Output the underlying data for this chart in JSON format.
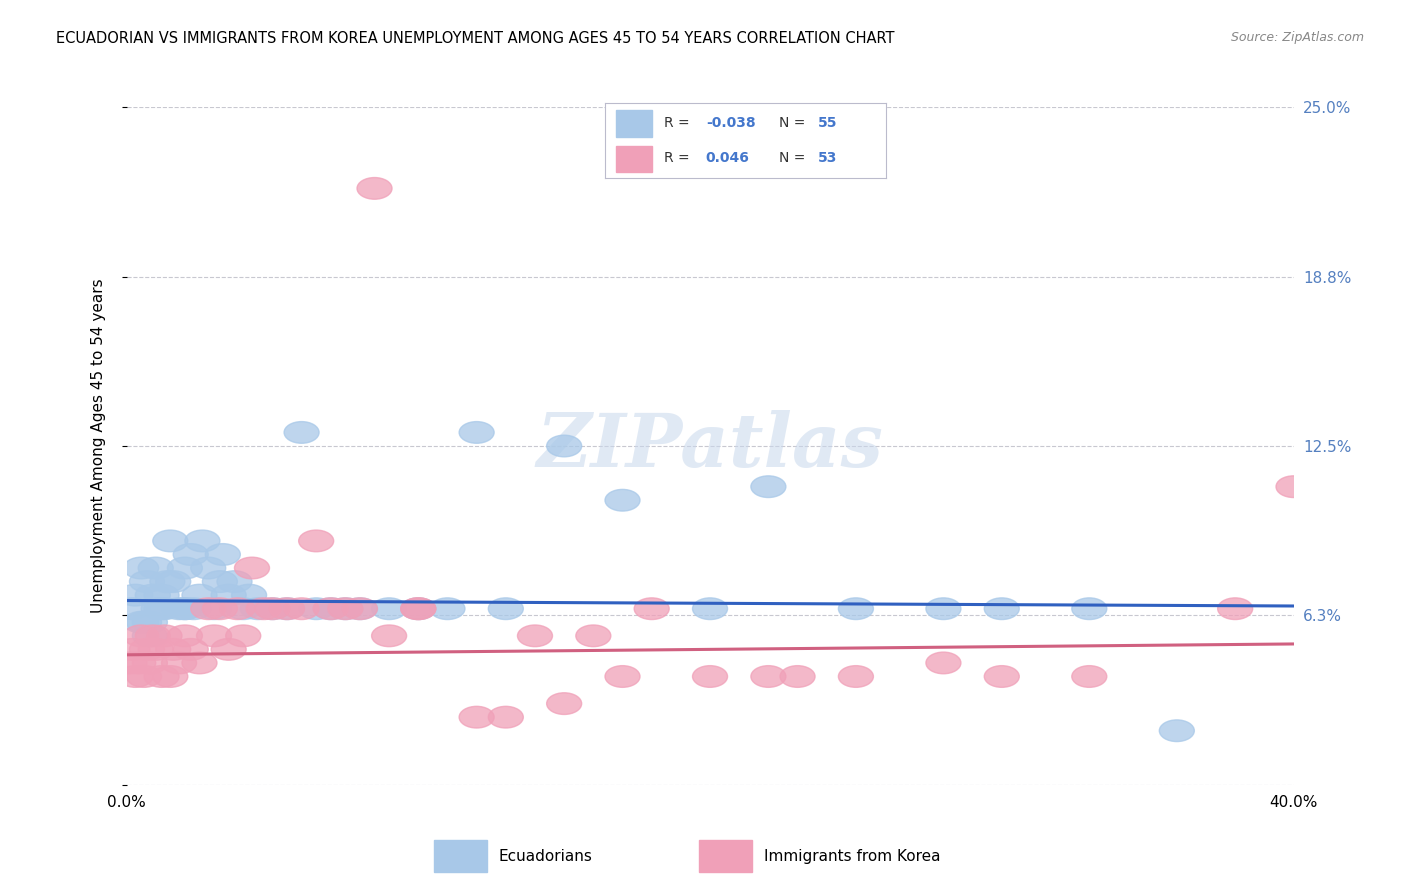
{
  "title": "ECUADORIAN VS IMMIGRANTS FROM KOREA UNEMPLOYMENT AMONG AGES 45 TO 54 YEARS CORRELATION CHART",
  "source": "Source: ZipAtlas.com",
  "ylabel": "Unemployment Among Ages 45 to 54 years",
  "xlim": [
    0.0,
    0.4
  ],
  "ylim": [
    0.0,
    0.25
  ],
  "yticks": [
    0.0,
    0.0625,
    0.125,
    0.1875,
    0.25
  ],
  "right_ytick_labels": [
    "6.3%",
    "12.5%",
    "18.8%",
    "25.0%"
  ],
  "right_ytick_vals": [
    0.0625,
    0.125,
    0.1875,
    0.25
  ],
  "legend_label1": "Ecuadorians",
  "legend_label2": "Immigrants from Korea",
  "r1": "-0.038",
  "n1": "55",
  "r2": "0.046",
  "n2": "53",
  "color_blue": "#A8C8E8",
  "color_pink": "#F0A0B8",
  "line_blue": "#3060C0",
  "line_pink": "#D06080",
  "watermark": "ZIPatlas",
  "background_color": "#FFFFFF",
  "grid_color": "#C8C8D0",
  "blue_x": [
    0.002,
    0.003,
    0.005,
    0.006,
    0.007,
    0.008,
    0.009,
    0.01,
    0.011,
    0.012,
    0.013,
    0.014,
    0.015,
    0.016,
    0.018,
    0.02,
    0.02,
    0.022,
    0.023,
    0.025,
    0.026,
    0.028,
    0.03,
    0.032,
    0.033,
    0.035,
    0.037,
    0.04,
    0.042,
    0.045,
    0.05,
    0.055,
    0.06,
    0.065,
    0.07,
    0.075,
    0.08,
    0.09,
    0.1,
    0.11,
    0.12,
    0.13,
    0.15,
    0.17,
    0.2,
    0.22,
    0.25,
    0.28,
    0.3,
    0.33,
    0.36,
    0.005,
    0.008,
    0.012,
    0.02
  ],
  "blue_y": [
    0.065,
    0.07,
    0.08,
    0.06,
    0.075,
    0.055,
    0.07,
    0.08,
    0.065,
    0.07,
    0.065,
    0.075,
    0.09,
    0.075,
    0.065,
    0.08,
    0.065,
    0.085,
    0.065,
    0.07,
    0.09,
    0.08,
    0.065,
    0.075,
    0.085,
    0.07,
    0.075,
    0.065,
    0.07,
    0.065,
    0.065,
    0.065,
    0.13,
    0.065,
    0.065,
    0.065,
    0.065,
    0.065,
    0.065,
    0.065,
    0.13,
    0.065,
    0.125,
    0.105,
    0.065,
    0.11,
    0.065,
    0.065,
    0.065,
    0.065,
    0.02,
    0.06,
    0.06,
    0.065,
    0.065
  ],
  "pink_x": [
    0.001,
    0.002,
    0.003,
    0.004,
    0.005,
    0.006,
    0.007,
    0.008,
    0.009,
    0.01,
    0.012,
    0.013,
    0.015,
    0.016,
    0.018,
    0.02,
    0.022,
    0.025,
    0.028,
    0.03,
    0.032,
    0.035,
    0.038,
    0.04,
    0.043,
    0.047,
    0.05,
    0.055,
    0.06,
    0.065,
    0.07,
    0.075,
    0.08,
    0.09,
    0.1,
    0.12,
    0.14,
    0.15,
    0.16,
    0.18,
    0.2,
    0.22,
    0.25,
    0.28,
    0.3,
    0.33,
    0.38,
    0.4,
    0.13,
    0.17,
    0.23,
    0.1,
    0.085
  ],
  "pink_y": [
    0.045,
    0.05,
    0.04,
    0.045,
    0.055,
    0.04,
    0.05,
    0.045,
    0.055,
    0.05,
    0.04,
    0.055,
    0.04,
    0.05,
    0.045,
    0.055,
    0.05,
    0.045,
    0.065,
    0.055,
    0.065,
    0.05,
    0.065,
    0.055,
    0.08,
    0.065,
    0.065,
    0.065,
    0.065,
    0.09,
    0.065,
    0.065,
    0.065,
    0.055,
    0.065,
    0.025,
    0.055,
    0.03,
    0.055,
    0.065,
    0.04,
    0.04,
    0.04,
    0.045,
    0.04,
    0.04,
    0.065,
    0.11,
    0.025,
    0.04,
    0.04,
    0.065,
    0.22
  ]
}
